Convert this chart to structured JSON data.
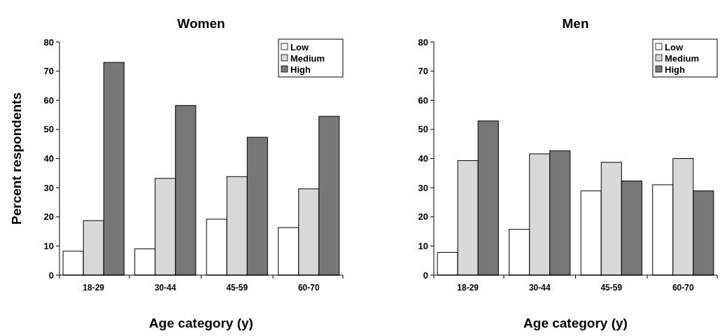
{
  "chart_data": [
    {
      "type": "bar",
      "title": "Women",
      "xlabel": "Age category (y)",
      "ylabel": "Percent respondents",
      "categories": [
        "18-29",
        "30-44",
        "45-59",
        "60-70"
      ],
      "series": [
        {
          "name": "Low",
          "color": "#ffffff",
          "values": [
            8.2,
            9,
            19.2,
            16.3
          ]
        },
        {
          "name": "Medium",
          "color": "#d8d8d8",
          "values": [
            18.7,
            33.2,
            33.8,
            29.6
          ]
        },
        {
          "name": "High",
          "color": "#777777",
          "values": [
            73,
            58.2,
            47.3,
            54.5
          ]
        }
      ],
      "ylim": [
        0,
        80
      ],
      "yticks": [
        0,
        10,
        20,
        30,
        40,
        50,
        60,
        70,
        80
      ],
      "grid": false,
      "legend": "top right"
    },
    {
      "type": "bar",
      "title": "Men",
      "xlabel": "Age category (y)",
      "categories": [
        "18-29",
        "30-44",
        "45-59",
        "60-70"
      ],
      "series": [
        {
          "name": "Low",
          "color": "#ffffff",
          "values": [
            7.8,
            15.7,
            28.9,
            31
          ]
        },
        {
          "name": "Medium",
          "color": "#d8d8d8",
          "values": [
            39.3,
            41.6,
            38.7,
            40
          ]
        },
        {
          "name": "High",
          "color": "#777777",
          "values": [
            52.9,
            42.7,
            32.3,
            28.9
          ]
        }
      ],
      "ylim": [
        0,
        80
      ],
      "yticks": [
        0,
        10,
        20,
        30,
        40,
        50,
        60,
        70,
        80
      ],
      "grid": false,
      "legend": "top right"
    }
  ]
}
